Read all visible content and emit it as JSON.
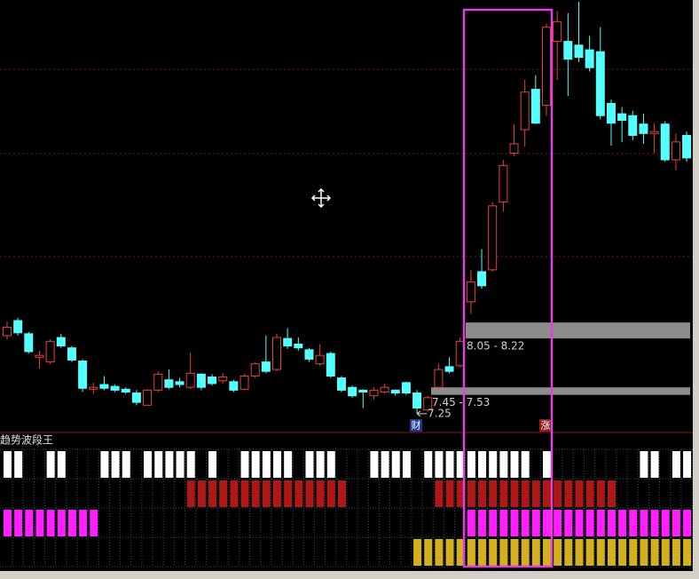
{
  "chart_data": {
    "type": "candlestick",
    "indicator_title": "趋势波段王",
    "ylim": [
      7.05,
      11.65
    ],
    "up_color": "#e8403c",
    "down_color": "#54ffff",
    "open": [
      8.08,
      8.24,
      8.1,
      7.85,
      7.8,
      8.06,
      7.95,
      7.81,
      7.51,
      7.56,
      7.54,
      7.51,
      7.47,
      7.34,
      7.5,
      7.61,
      7.59,
      7.53,
      7.67,
      7.64,
      7.6,
      7.59,
      7.51,
      7.65,
      7.8,
      7.72,
      8.05,
      7.99,
      7.93,
      7.78,
      7.89,
      7.63,
      7.53,
      7.5,
      7.44,
      7.48,
      7.5,
      7.58,
      7.47,
      7.29,
      7.53,
      7.75,
      7.76,
      8.44,
      8.76,
      8.78,
      9.5,
      10.02,
      10.27,
      10.7,
      10.53,
      11.21,
      11.21,
      11.17,
      11.12,
      11.1,
      10.55,
      10.44,
      10.42,
      10.33,
      10.23,
      10.33,
      9.95,
      10.21
    ],
    "high": [
      8.23,
      8.27,
      8.12,
      7.92,
      8.04,
      8.1,
      7.97,
      7.83,
      7.58,
      7.65,
      7.56,
      7.53,
      7.5,
      7.51,
      7.7,
      7.72,
      7.63,
      7.9,
      7.68,
      7.67,
      7.68,
      7.61,
      7.67,
      7.8,
      8.08,
      8.1,
      8.16,
      8.06,
      7.95,
      7.99,
      7.91,
      7.65,
      7.55,
      7.51,
      7.53,
      7.57,
      7.51,
      7.59,
      7.5,
      7.44,
      7.78,
      7.85,
      8.06,
      8.78,
      9.0,
      9.5,
      9.95,
      10.33,
      10.8,
      10.85,
      11.4,
      11.53,
      11.51,
      11.63,
      11.27,
      11.36,
      10.59,
      10.51,
      10.47,
      10.44,
      10.34,
      10.36,
      10.23,
      10.25
    ],
    "low": [
      8.04,
      8.08,
      7.89,
      7.73,
      7.78,
      7.95,
      7.8,
      7.48,
      7.46,
      7.5,
      7.48,
      7.46,
      7.34,
      7.34,
      7.48,
      7.51,
      7.53,
      7.51,
      7.5,
      7.55,
      7.57,
      7.48,
      7.5,
      7.63,
      7.68,
      7.7,
      7.94,
      7.92,
      7.8,
      7.76,
      7.63,
      7.48,
      7.42,
      7.31,
      7.4,
      7.46,
      7.44,
      7.45,
      7.25,
      7.27,
      7.51,
      7.68,
      7.74,
      8.31,
      8.58,
      8.76,
      9.4,
      9.99,
      10.09,
      10.33,
      10.42,
      10.8,
      10.63,
      10.99,
      10.89,
      10.38,
      10.1,
      10.14,
      10.16,
      10.12,
      10.02,
      9.93,
      9.84,
      9.93
    ],
    "close": [
      8.17,
      8.11,
      7.91,
      7.87,
      8.02,
      7.97,
      7.82,
      7.52,
      7.53,
      7.52,
      7.5,
      7.48,
      7.37,
      7.5,
      7.67,
      7.53,
      7.56,
      7.68,
      7.53,
      7.57,
      7.64,
      7.5,
      7.65,
      7.78,
      7.7,
      8.06,
      7.97,
      7.95,
      7.83,
      7.87,
      7.65,
      7.5,
      7.44,
      7.48,
      7.5,
      7.53,
      7.47,
      7.47,
      7.31,
      7.42,
      7.72,
      7.7,
      8.02,
      8.65,
      8.61,
      9.46,
      9.89,
      10.12,
      10.67,
      10.34,
      11.36,
      11.42,
      11.02,
      11.04,
      10.93,
      10.42,
      10.34,
      10.37,
      10.21,
      10.23,
      10.25,
      9.95,
      10.14,
      9.97
    ],
    "price_bands": [
      {
        "low": 8.05,
        "high": 8.22,
        "label": "8.05 - 8.22"
      },
      {
        "low": 7.45,
        "high": 7.53,
        "label": "7.45 - 7.53"
      }
    ],
    "low_marker": 7.25,
    "badges": [
      "财",
      "涨"
    ],
    "indicator_rows": [
      {
        "color": "#ffffff",
        "values": [
          1,
          1,
          0,
          0,
          1,
          1,
          0,
          0,
          0,
          1,
          1,
          1,
          0,
          1,
          1,
          1,
          1,
          1,
          0,
          1,
          0,
          0,
          1,
          1,
          1,
          1,
          1,
          0,
          1,
          1,
          1,
          0,
          0,
          0,
          1,
          1,
          1,
          1,
          0,
          1,
          1,
          1,
          1,
          1,
          1,
          1,
          1,
          1,
          1,
          0,
          1,
          0,
          0,
          0,
          0,
          0,
          0,
          0,
          0,
          1,
          1,
          0,
          1,
          1
        ]
      },
      {
        "color": "#b01818",
        "values": [
          0,
          0,
          0,
          0,
          0,
          0,
          0,
          0,
          0,
          0,
          0,
          0,
          0,
          0,
          0,
          0,
          0,
          1,
          1,
          1,
          1,
          1,
          1,
          1,
          1,
          1,
          1,
          1,
          1,
          1,
          1,
          1,
          0,
          0,
          0,
          0,
          0,
          0,
          0,
          0,
          1,
          1,
          1,
          1,
          1,
          1,
          1,
          1,
          1,
          1,
          1,
          1,
          1,
          1,
          1,
          1,
          1,
          0,
          0,
          0,
          0,
          0,
          0,
          0
        ]
      },
      {
        "color": "#ff20ff",
        "values": [
          1,
          1,
          1,
          1,
          1,
          1,
          1,
          1,
          1,
          0,
          0,
          0,
          0,
          0,
          0,
          0,
          0,
          0,
          0,
          0,
          0,
          0,
          0,
          0,
          0,
          0,
          0,
          0,
          0,
          0,
          0,
          0,
          0,
          0,
          0,
          0,
          0,
          0,
          0,
          0,
          0,
          0,
          0,
          1,
          1,
          1,
          1,
          1,
          1,
          1,
          1,
          1,
          1,
          1,
          1,
          1,
          1,
          1,
          1,
          1,
          1,
          1,
          1,
          1
        ]
      },
      {
        "color": "#d4b020",
        "values": [
          0,
          0,
          0,
          0,
          0,
          0,
          0,
          0,
          0,
          0,
          0,
          0,
          0,
          0,
          0,
          0,
          0,
          0,
          0,
          0,
          0,
          0,
          0,
          0,
          0,
          0,
          0,
          0,
          0,
          0,
          0,
          0,
          0,
          0,
          0,
          0,
          0,
          0,
          1,
          1,
          1,
          1,
          1,
          1,
          1,
          1,
          1,
          1,
          1,
          1,
          1,
          1,
          1,
          1,
          1,
          1,
          1,
          1,
          1,
          1,
          1,
          1,
          1,
          1
        ]
      }
    ]
  }
}
